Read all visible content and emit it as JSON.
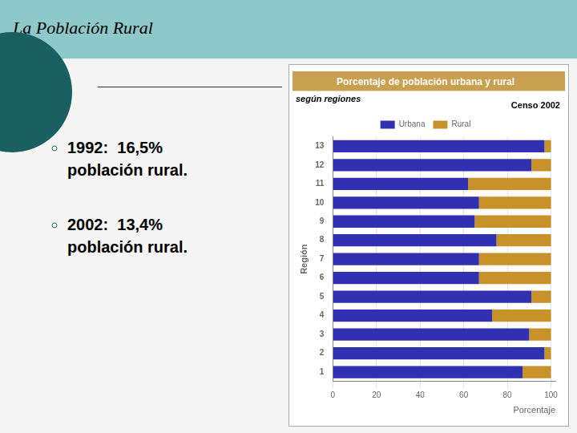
{
  "slide_title": "La Población Rural",
  "bullets": [
    [
      "1992:  16,5%",
      "población rural."
    ],
    [
      "2002:  13,4%",
      "población rural."
    ]
  ],
  "chart_data": {
    "type": "bar",
    "orientation": "horizontal",
    "stacked": true,
    "title": "Porcentaje de población urbana y rural",
    "subtitle": "según regiones",
    "annotations": [
      "Censo 2002"
    ],
    "xlabel": "Porcentaje",
    "ylabel": "Región",
    "categories": [
      "1",
      "2",
      "3",
      "4",
      "5",
      "6",
      "7",
      "8",
      "9",
      "10",
      "11",
      "12",
      "13"
    ],
    "series": [
      {
        "name": "Urbana",
        "color": "#3030b0",
        "values": [
          87,
          97,
          90,
          73,
          91,
          67,
          67,
          75,
          65,
          67,
          62,
          91,
          97
        ]
      },
      {
        "name": "Rural",
        "color": "#c8922a",
        "values": [
          13,
          3,
          10,
          27,
          9,
          33,
          33,
          25,
          35,
          33,
          38,
          9,
          3
        ]
      }
    ],
    "xlim": [
      0,
      102
    ],
    "xticks": [
      0,
      20,
      40,
      60,
      80,
      100
    ],
    "grid": true,
    "legend": "top"
  }
}
